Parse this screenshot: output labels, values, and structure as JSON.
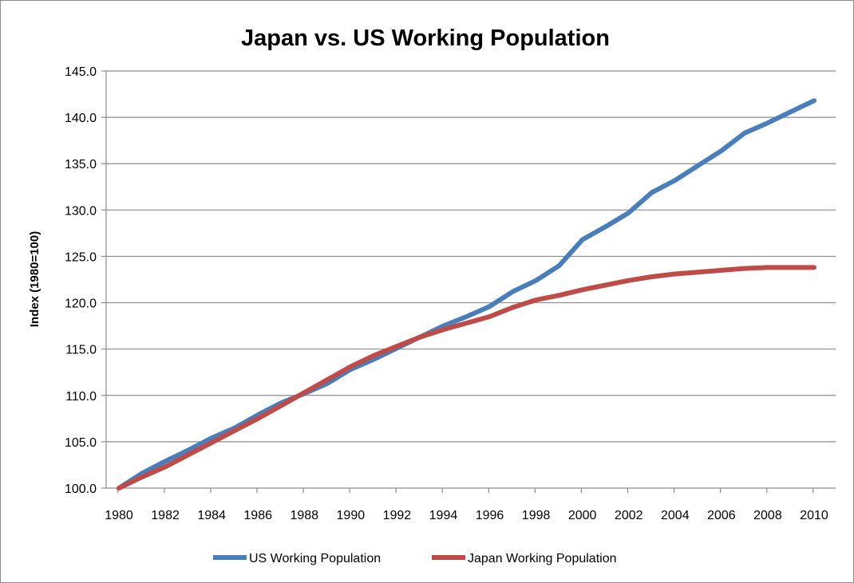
{
  "chart_data": {
    "type": "line",
    "title": "Japan vs. US Working Population",
    "xlabel": "",
    "ylabel": "Index (1980=100)",
    "ylim": [
      100,
      145
    ],
    "y_ticks": [
      "100.0",
      "105.0",
      "110.0",
      "115.0",
      "120.0",
      "125.0",
      "130.0",
      "135.0",
      "140.0",
      "145.0"
    ],
    "x": [
      1980,
      1981,
      1982,
      1983,
      1984,
      1985,
      1986,
      1987,
      1988,
      1989,
      1990,
      1991,
      1992,
      1993,
      1994,
      1995,
      1996,
      1997,
      1998,
      1999,
      2000,
      2001,
      2002,
      2003,
      2004,
      2005,
      2006,
      2007,
      2008,
      2009,
      2010
    ],
    "x_ticks": [
      "1980",
      "1982",
      "1984",
      "1986",
      "1988",
      "1990",
      "1992",
      "1994",
      "1996",
      "1998",
      "2000",
      "2002",
      "2004",
      "2006",
      "2008",
      "2010"
    ],
    "grid": true,
    "legend_position": "bottom",
    "series": [
      {
        "name": "US Working Population",
        "color": "#4a7ebb",
        "values": [
          100.0,
          101.6,
          102.9,
          104.1,
          105.4,
          106.5,
          107.9,
          109.2,
          110.2,
          111.3,
          112.8,
          113.9,
          115.1,
          116.3,
          117.5,
          118.5,
          119.6,
          121.2,
          122.4,
          124.0,
          126.8,
          128.2,
          129.7,
          131.9,
          133.2,
          134.8,
          136.4,
          138.3,
          139.4,
          140.6,
          141.8
        ]
      },
      {
        "name": "Japan Working Population",
        "color": "#be4b48",
        "values": [
          100.0,
          101.2,
          102.3,
          103.6,
          104.9,
          106.2,
          107.5,
          108.9,
          110.3,
          111.7,
          113.1,
          114.3,
          115.3,
          116.3,
          117.1,
          117.8,
          118.5,
          119.5,
          120.3,
          120.8,
          121.4,
          121.9,
          122.4,
          122.8,
          123.1,
          123.3,
          123.5,
          123.7,
          123.8,
          123.8,
          123.8
        ]
      }
    ]
  }
}
